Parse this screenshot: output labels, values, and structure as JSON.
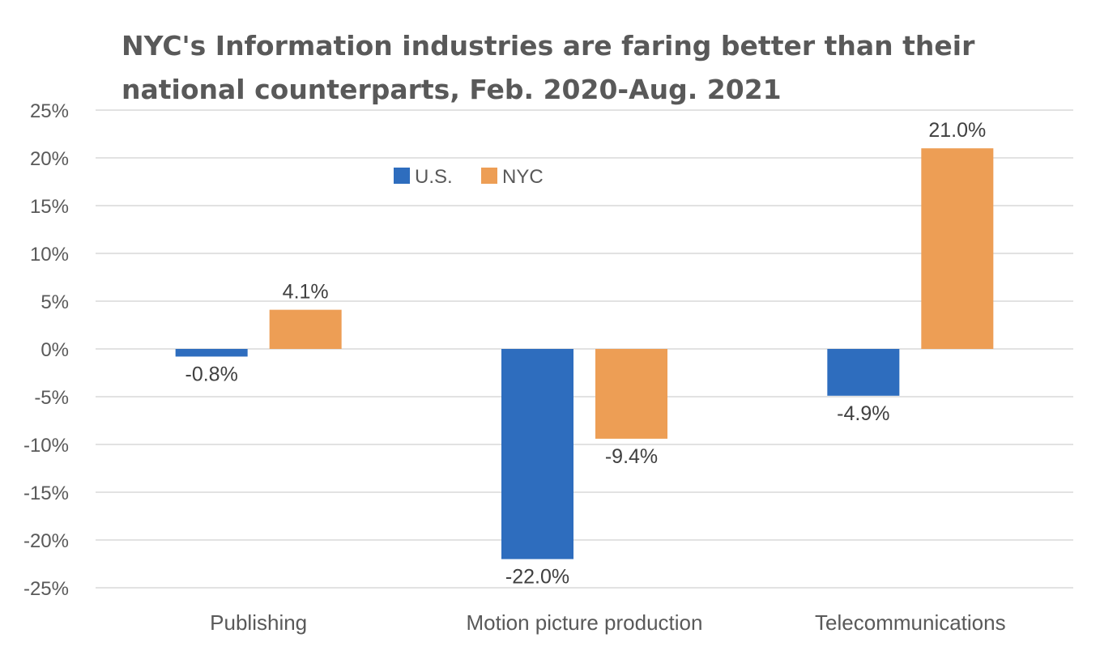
{
  "chart_data": {
    "type": "bar",
    "title": "NYC's Information industries are faring better than their national counterparts, Feb. 2020-Aug. 2021",
    "categories": [
      "Publishing",
      "Motion picture production",
      "Telecommunications"
    ],
    "series": [
      {
        "name": "U.S.",
        "values": [
          -0.8,
          -22.0,
          -4.9
        ],
        "color": "#2E6DBE",
        "labels": [
          "-0.8%",
          "-22.0%",
          "-4.9%"
        ]
      },
      {
        "name": "NYC",
        "values": [
          4.1,
          -9.4,
          21.0
        ],
        "color": "#ED9E55",
        "labels": [
          "4.1%",
          "-9.4%",
          "21.0%"
        ]
      }
    ],
    "ylim": [
      -25,
      25
    ],
    "yticks": [
      25,
      20,
      15,
      10,
      5,
      0,
      -5,
      -10,
      -15,
      -20,
      -25
    ],
    "ytick_labels": [
      "25%",
      "20%",
      "15%",
      "10%",
      "5%",
      "0%",
      "-5%",
      "-10%",
      "-15%",
      "-20%",
      "-25%"
    ],
    "xlabel": "",
    "ylabel": "",
    "grid": true,
    "legend_position": "top"
  }
}
